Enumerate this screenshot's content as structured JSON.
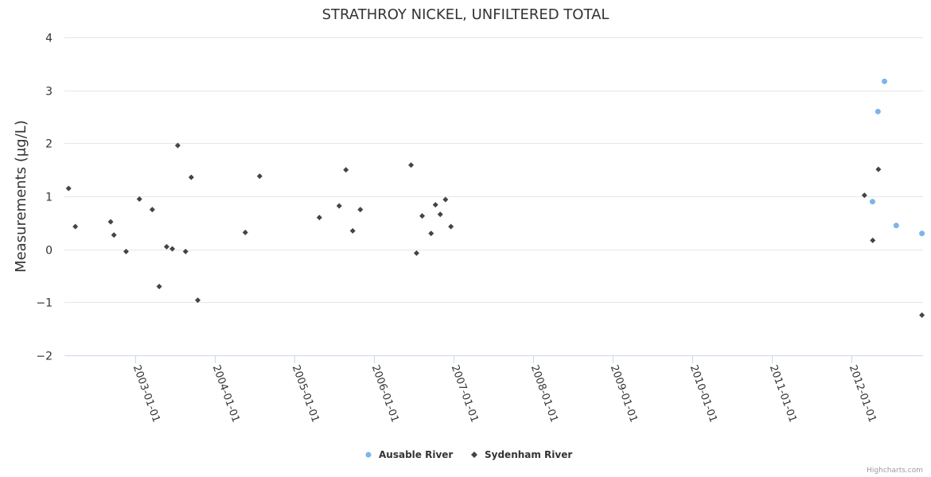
{
  "colors": {
    "ausable": "#7cb5ec",
    "sydenham": "#434348",
    "grid": "#e6e6e6",
    "axis": "#ccd6eb",
    "text": "#333333",
    "credits": "#999999"
  },
  "credits": "Highcharts.com",
  "chart_data": {
    "type": "scatter",
    "title": "STRATHROY NICKEL, UNFILTERED TOTAL",
    "ylabel": "Measurements (μg/L)",
    "xlabel": "",
    "ylim": [
      -2,
      4
    ],
    "y_ticks": [
      -2,
      -1,
      0,
      1,
      2,
      3,
      4
    ],
    "y_tick_labels": [
      "−2",
      "−1",
      "0",
      "1",
      "2",
      "3",
      "4"
    ],
    "xlim": [
      "2002-02-10",
      "2012-11-25"
    ],
    "x_ticks": [
      "2003-01-01",
      "2004-01-01",
      "2005-01-01",
      "2006-01-01",
      "2007-01-01",
      "2008-01-01",
      "2009-01-01",
      "2010-01-01",
      "2011-01-01",
      "2012-01-01"
    ],
    "grid": true,
    "legend_position": "bottom-center",
    "series": [
      {
        "name": "Ausable River",
        "marker": "circle",
        "points": [
          {
            "x": "2012-04-07",
            "y": 0.9
          },
          {
            "x": "2012-05-02",
            "y": 2.6
          },
          {
            "x": "2012-06-01",
            "y": 3.17
          },
          {
            "x": "2012-07-25",
            "y": 0.45
          },
          {
            "x": "2012-11-20",
            "y": 0.3
          }
        ]
      },
      {
        "name": "Sydenham River",
        "marker": "diamond",
        "points": [
          {
            "x": "2002-03-01",
            "y": 1.15
          },
          {
            "x": "2002-04-01",
            "y": 0.43
          },
          {
            "x": "2002-09-10",
            "y": 0.52
          },
          {
            "x": "2002-09-25",
            "y": 0.27
          },
          {
            "x": "2002-11-20",
            "y": -0.04
          },
          {
            "x": "2003-01-20",
            "y": 0.95
          },
          {
            "x": "2003-03-20",
            "y": 0.75
          },
          {
            "x": "2003-04-21",
            "y": -0.7
          },
          {
            "x": "2003-05-25",
            "y": 0.05
          },
          {
            "x": "2003-06-20",
            "y": 0.01
          },
          {
            "x": "2003-07-15",
            "y": 1.96
          },
          {
            "x": "2003-08-20",
            "y": -0.04
          },
          {
            "x": "2003-09-15",
            "y": 1.36
          },
          {
            "x": "2003-10-15",
            "y": -0.96
          },
          {
            "x": "2004-05-20",
            "y": 0.32
          },
          {
            "x": "2004-07-25",
            "y": 1.38
          },
          {
            "x": "2005-04-25",
            "y": 0.6
          },
          {
            "x": "2005-07-25",
            "y": 0.82
          },
          {
            "x": "2005-08-25",
            "y": 1.5
          },
          {
            "x": "2005-09-25",
            "y": 0.35
          },
          {
            "x": "2005-10-30",
            "y": 0.75
          },
          {
            "x": "2006-06-20",
            "y": 1.59
          },
          {
            "x": "2006-07-15",
            "y": -0.07
          },
          {
            "x": "2006-08-10",
            "y": 0.63
          },
          {
            "x": "2006-09-20",
            "y": 0.3
          },
          {
            "x": "2006-10-10",
            "y": 0.84
          },
          {
            "x": "2006-11-01",
            "y": 0.66
          },
          {
            "x": "2006-11-25",
            "y": 0.94
          },
          {
            "x": "2006-12-20",
            "y": 0.43
          },
          {
            "x": "2012-03-01",
            "y": 1.02
          },
          {
            "x": "2012-04-08",
            "y": 0.17
          },
          {
            "x": "2012-05-04",
            "y": 1.51
          },
          {
            "x": "2012-11-20",
            "y": -1.24
          }
        ]
      }
    ]
  }
}
